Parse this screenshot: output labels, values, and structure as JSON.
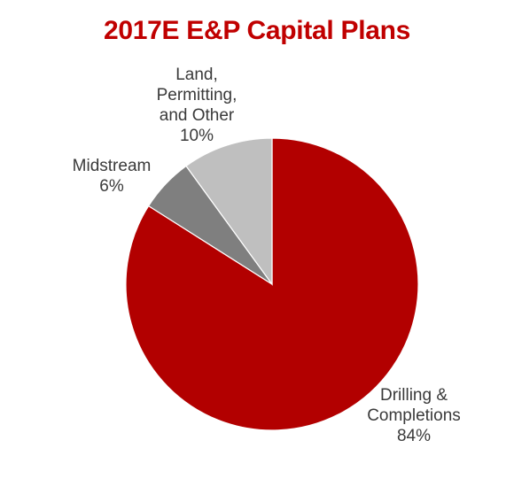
{
  "chart_data": {
    "type": "pie",
    "title": "2017E E&P Capital Plans",
    "title_color": "#C00000",
    "start": "12 o'clock",
    "direction": "clockwise",
    "slices": [
      {
        "name": "Drilling & Completions",
        "label_lines": [
          "Drilling &",
          "Completions",
          "84%"
        ],
        "value": 84,
        "color": "#B20000"
      },
      {
        "name": "Midstream",
        "label_lines": [
          "Midstream",
          "6%"
        ],
        "value": 6,
        "color": "#7F7F7F"
      },
      {
        "name": "Land, Permitting, and Other",
        "label_lines": [
          "Land,",
          "Permitting,",
          "and Other",
          "10%"
        ],
        "value": 10,
        "color": "#BFBFBF"
      }
    ]
  }
}
